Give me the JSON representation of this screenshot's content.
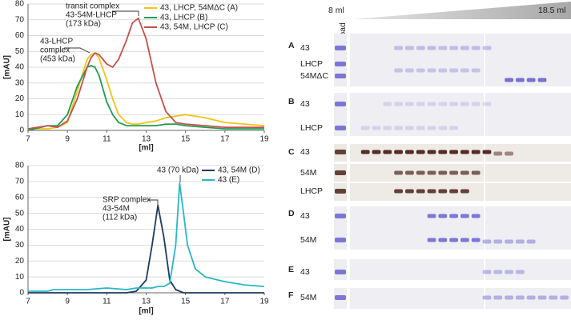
{
  "chart_data": [
    {
      "type": "line",
      "xlabel": "[ml]",
      "ylabel": "[mAU]",
      "x": [
        7,
        8,
        8.5,
        9,
        9.5,
        10,
        10.2,
        10.4,
        10.6,
        11,
        11.3,
        11.6,
        12,
        12.3,
        12.6,
        13,
        13.5,
        14,
        14.5,
        15,
        16,
        17,
        18,
        19
      ],
      "series": [
        {
          "name": "43, LHCP, 54MΔC (A)",
          "color": "#f2c418",
          "values": [
            1,
            1,
            2,
            5,
            25,
            45,
            48,
            49,
            46,
            32,
            20,
            10,
            5,
            4,
            4,
            5,
            6,
            8,
            9,
            10,
            8,
            5,
            4,
            3
          ]
        },
        {
          "name": "43, LHCP (B)",
          "color": "#1e9e52",
          "values": [
            0,
            3,
            3,
            10,
            28,
            40,
            41,
            40,
            35,
            18,
            10,
            5,
            3,
            3,
            3,
            3,
            3,
            4,
            4,
            3,
            2,
            1,
            1,
            1
          ]
        },
        {
          "name": "43, 54M, LHCP (C)",
          "color": "#c8504a",
          "values": [
            1,
            3,
            2,
            6,
            20,
            40,
            46,
            49,
            48,
            42,
            40,
            45,
            57,
            68,
            71,
            58,
            30,
            12,
            5,
            4,
            3,
            2,
            2,
            2
          ]
        }
      ],
      "xlim": [
        7,
        19
      ],
      "ylim": [
        0,
        80
      ],
      "xticks": [
        7,
        9,
        11,
        13,
        15,
        17,
        19
      ],
      "yticks": [
        0,
        10,
        20,
        30,
        40,
        50,
        60,
        70,
        80
      ],
      "grid": true,
      "annotations": [
        [
          "transit complex",
          "43-54M-LHCP",
          "(173 kDa)"
        ],
        [
          "43-LHCP",
          "complex",
          "(453 kDa)"
        ]
      ]
    },
    {
      "type": "line",
      "xlabel": "[ml]",
      "ylabel": "[mAU]",
      "x": [
        7,
        8,
        8.3,
        9,
        10,
        11,
        12,
        12.5,
        13,
        13.3,
        13.6,
        13.9,
        14.2,
        14.5,
        14.7,
        14.9,
        15.1,
        15.5,
        16,
        17,
        18,
        19
      ],
      "series": [
        {
          "name": "43, 54M (D)",
          "color": "#1f3a5f",
          "values": [
            0,
            0,
            0,
            0,
            0,
            0,
            0,
            1,
            8,
            30,
            55,
            35,
            8,
            2,
            1,
            0,
            0,
            0,
            0,
            0,
            0,
            0
          ]
        },
        {
          "name": "43 (E)",
          "color": "#2bb6c8",
          "values": [
            1,
            1,
            2,
            2,
            2,
            3,
            2,
            3,
            3,
            3,
            4,
            4,
            6,
            30,
            69,
            50,
            30,
            15,
            10,
            7,
            5,
            4
          ]
        }
      ],
      "xlim": [
        7,
        19
      ],
      "ylim": [
        0,
        80
      ],
      "xticks": [
        7,
        9,
        11,
        13,
        15,
        17,
        19
      ],
      "yticks": [
        0,
        10,
        20,
        30,
        40,
        50,
        60,
        70,
        80
      ],
      "grid": true,
      "annotations": [
        [
          "43 (70 kDa)"
        ],
        [
          "SRP complex",
          "43-54M",
          "(112 kDa)"
        ]
      ]
    }
  ],
  "gel": {
    "start": "8 ml",
    "end": "18.5 ml",
    "load": "load",
    "panels": [
      {
        "label": "A",
        "rows": [
          "43",
          "LHCP",
          "54MΔC"
        ]
      },
      {
        "label": "B",
        "rows": [
          "43",
          "LHCP"
        ]
      },
      {
        "label": "C",
        "rows": [
          "43",
          "54M",
          "LHCP"
        ]
      },
      {
        "label": "D",
        "rows": [
          "43",
          "54M"
        ]
      },
      {
        "label": "E",
        "rows": [
          "43"
        ]
      },
      {
        "label": "F",
        "rows": [
          "54M"
        ]
      }
    ]
  }
}
